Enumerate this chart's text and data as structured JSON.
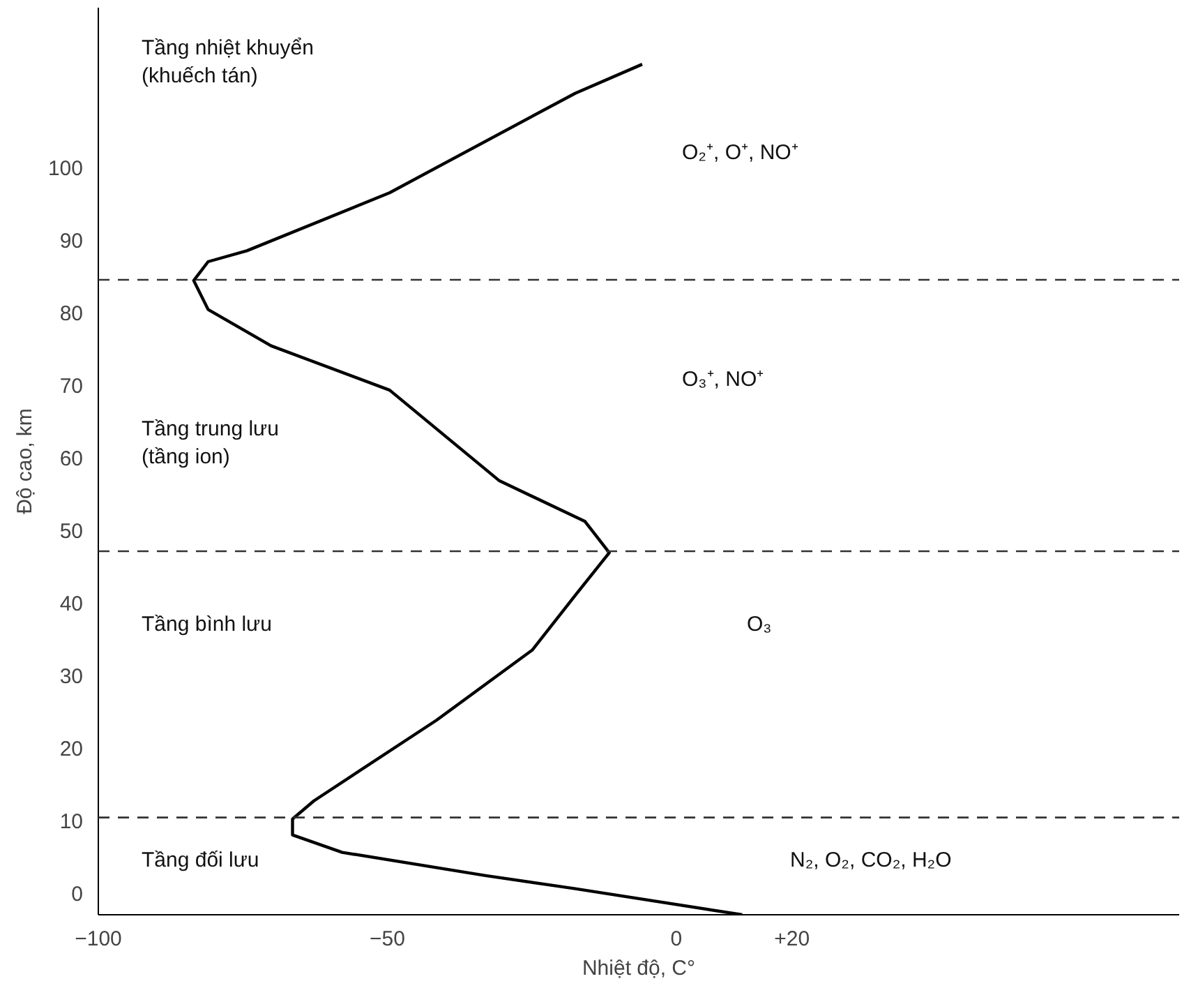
{
  "chart_data": {
    "type": "line",
    "xlabel": "Nhiệt độ, C°",
    "ylabel": "Độ cao, km",
    "x": [
      11.4,
      -17.5,
      -33,
      -57.8,
      -66.4,
      -66.4,
      -62.7,
      -41.5,
      -24.9,
      -17.5,
      -11.6,
      -15.8,
      -30.6,
      -49.6,
      -70.1,
      -81,
      -83.5,
      -81,
      -74.3,
      -49.6,
      -17.5,
      -5.9
    ],
    "series": [
      {
        "color": "#000000",
        "values": [
          -3,
          0.6,
          2.4,
          5.6,
          8.0,
          10.2,
          12.7,
          23.8,
          33.5,
          41,
          46.9,
          51.2,
          56.8,
          69.3,
          75.4,
          80.4,
          84.4,
          87,
          88.5,
          96.5,
          110.2,
          114.2
        ]
      }
    ],
    "xlim": [
      -100,
      87
    ],
    "ylim": [
      -3,
      122
    ],
    "xticks": [
      -100,
      -50,
      0,
      {
        "value": 20,
        "label": "+20"
      }
    ],
    "yticks": [
      0,
      10,
      20,
      30,
      40,
      50,
      60,
      70,
      80,
      90,
      100
    ],
    "grid": false,
    "marker": "none",
    "line_style": "solid",
    "ref_lines": [
      {
        "axis": "y",
        "value": 84.5,
        "line_style": "dashed"
      },
      {
        "axis": "y",
        "value": 47.1,
        "line_style": "dashed"
      },
      {
        "axis": "y",
        "value": 10.4,
        "line_style": "dashed"
      }
    ],
    "annotations": [
      "Tầng nhiệt khuyển\n(khuếch tán)",
      "Tầng trung lưu\n(tầng ion)",
      "Tầng bình lưu",
      "Tầng đối lưu",
      "O₂⁺, O⁺, NO⁺",
      "O₃⁺, NO⁺",
      "O₃",
      "N₂, O₂, CO₂, H₂O"
    ]
  }
}
